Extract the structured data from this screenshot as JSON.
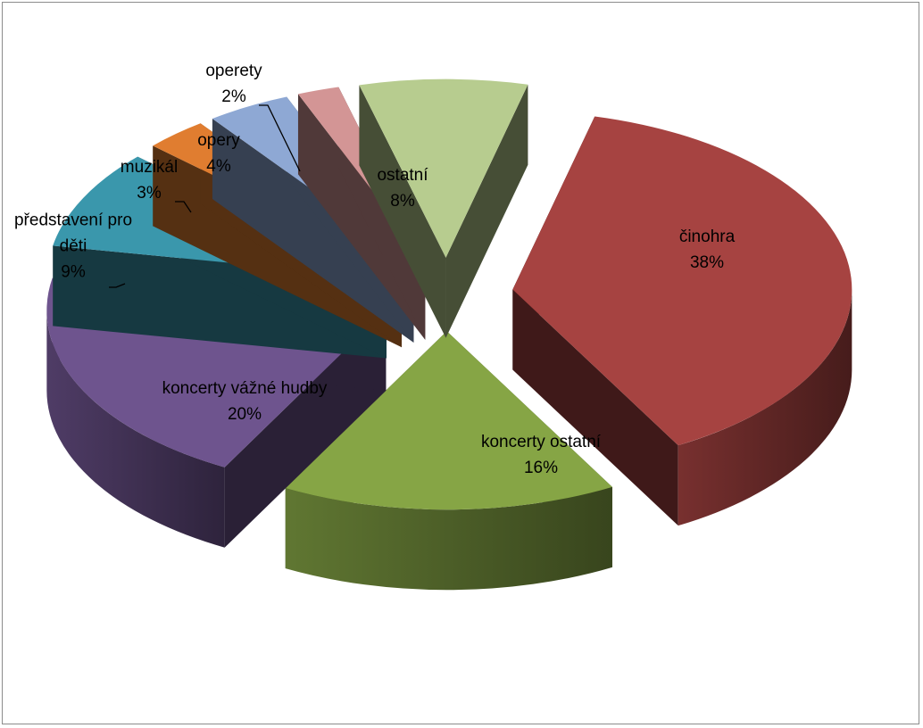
{
  "chart_data": {
    "type": "pie",
    "style": "3d-exploded",
    "title": "",
    "legend": "none",
    "slices": [
      {
        "name": "činohra",
        "value": 38,
        "percent_label": "38%",
        "color": "#a64341"
      },
      {
        "name": "koncerty ostatní",
        "value": 16,
        "percent_label": "16%",
        "color": "#86a545"
      },
      {
        "name": "koncerty vážné hudby",
        "value": 20,
        "percent_label": "20%",
        "color": "#6e548e"
      },
      {
        "name": "představení pro děti",
        "value": 9,
        "percent_label": "9%",
        "color": "#3a97ac"
      },
      {
        "name": "muzikál",
        "value": 3,
        "percent_label": "3%",
        "color": "#e07d30"
      },
      {
        "name": "opery",
        "value": 4,
        "percent_label": "4%",
        "color": "#8ea8d4"
      },
      {
        "name": "operety",
        "value": 2,
        "percent_label": "2%",
        "color": "#d39595"
      },
      {
        "name": "ostatní",
        "value": 8,
        "percent_label": "8%",
        "color": "#b7cc8f"
      }
    ]
  }
}
